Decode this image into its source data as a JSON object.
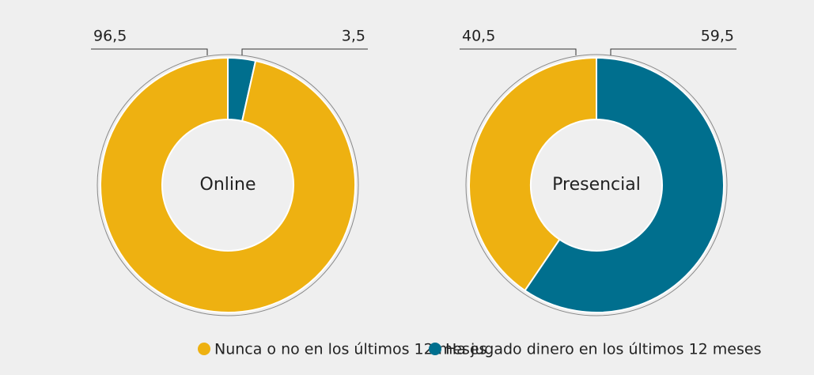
{
  "chart_data": [
    {
      "type": "donut",
      "title": "Online",
      "categories": [
        "Nunca o no en los últimos 12 meses",
        "Ha jugado dinero en los últimos 12 meses"
      ],
      "values": [
        96.5,
        3.5
      ],
      "value_labels": [
        "96,5",
        "3,5"
      ],
      "colors": [
        "#eeb111",
        "#006f8e"
      ]
    },
    {
      "type": "donut",
      "title": "Presencial",
      "categories": [
        "Nunca o no en los últimos 12 meses",
        "Ha jugado dinero en los últimos 12 meses"
      ],
      "values": [
        40.5,
        59.5
      ],
      "value_labels": [
        "40,5",
        "59,5"
      ],
      "colors": [
        "#eeb111",
        "#006f8e"
      ]
    }
  ]
}
